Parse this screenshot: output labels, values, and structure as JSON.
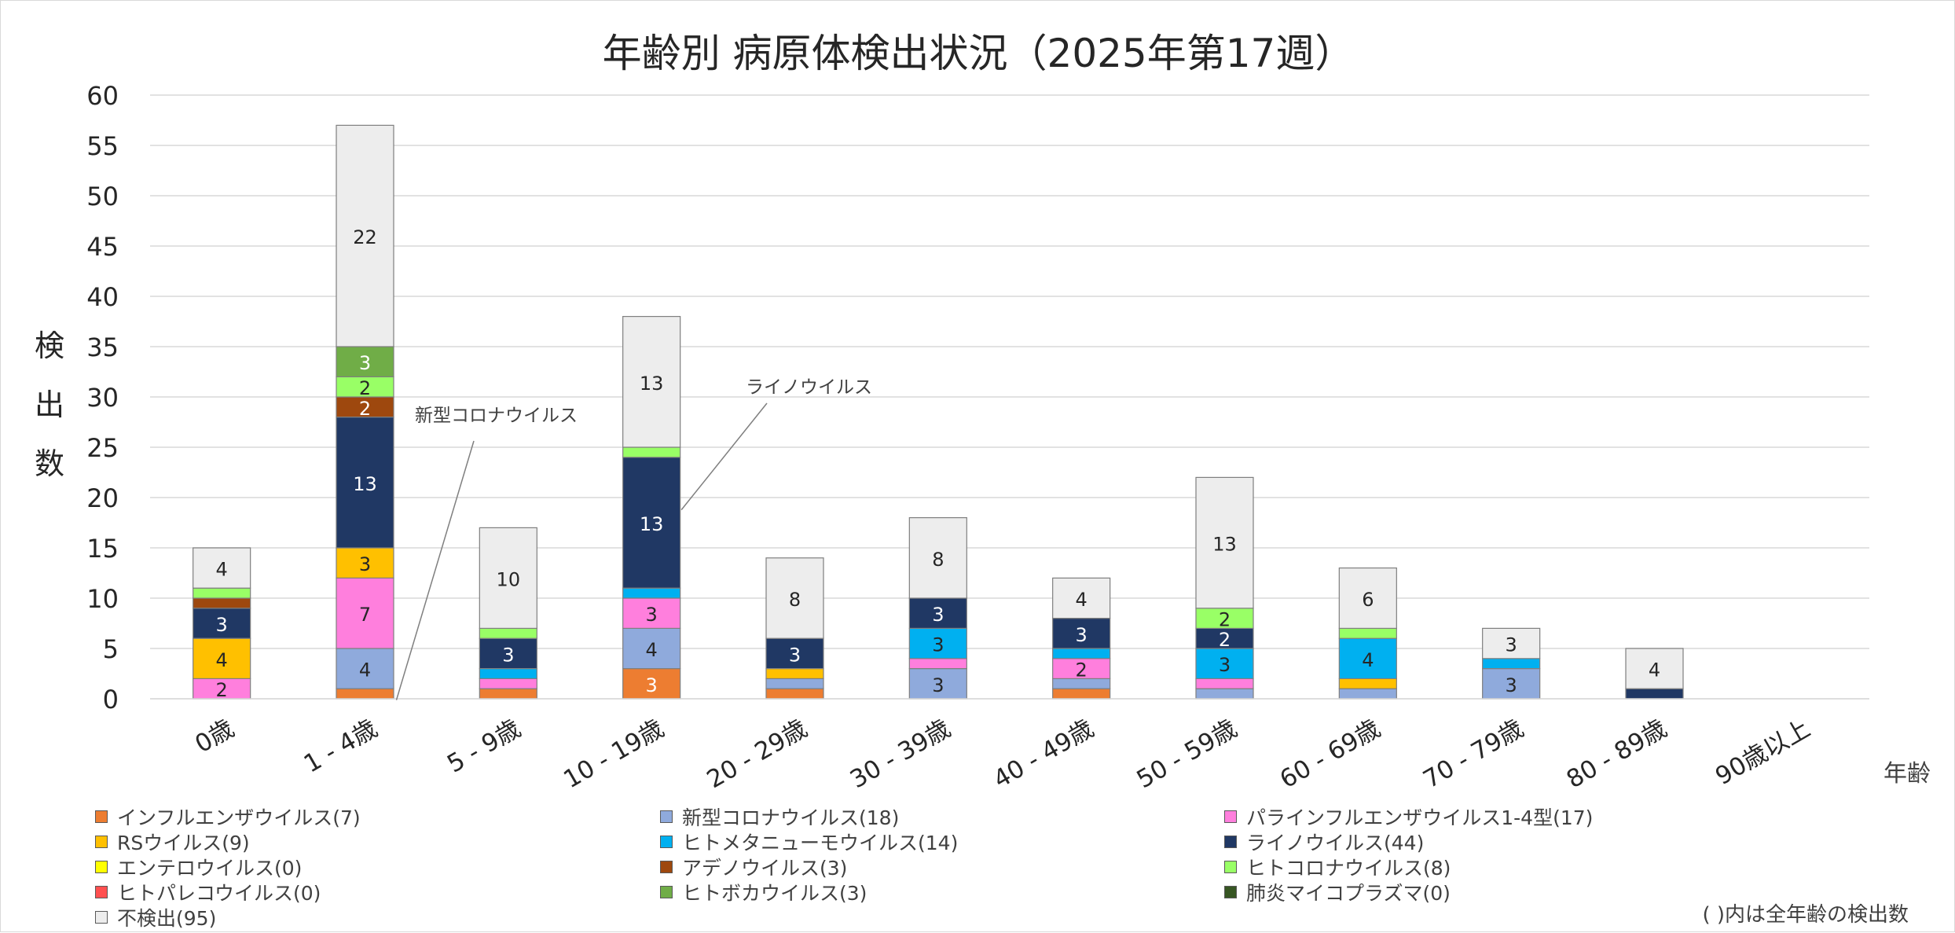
{
  "chart_data": {
    "type": "bar",
    "stacked": true,
    "title": "年齢別 病原体検出状況（2025年第17週）",
    "ylabel": "検出数",
    "xlabel": "年齢",
    "ylim": [
      0,
      60
    ],
    "yticks": [
      0,
      5,
      10,
      15,
      20,
      25,
      30,
      35,
      40,
      45,
      50,
      55,
      60
    ],
    "grid": true,
    "legend_position": "bottom",
    "categories": [
      "0歳",
      "1 - 4歳",
      "5 - 9歳",
      "10 - 19歳",
      "20 - 29歳",
      "30 - 39歳",
      "40 - 49歳",
      "50 - 59歳",
      "60 - 69歳",
      "70 - 79歳",
      "80 - 89歳",
      "90歳以上"
    ],
    "series": [
      {
        "name": "インフルエンザウイルス(7)",
        "color": "#ED7D31",
        "values": [
          0,
          1,
          1,
          3,
          1,
          0,
          1,
          0,
          0,
          0,
          0,
          0
        ]
      },
      {
        "name": "新型コロナウイルス(18)",
        "color": "#8FAADC",
        "values": [
          0,
          4,
          0,
          4,
          1,
          3,
          1,
          1,
          1,
          3,
          0,
          0
        ]
      },
      {
        "name": "パラインフルエンザウイルス1-4型(17)",
        "color": "#FF7FDD",
        "values": [
          2,
          7,
          1,
          3,
          0,
          1,
          2,
          1,
          0,
          0,
          0,
          0
        ]
      },
      {
        "name": "RSウイルス(9)",
        "color": "#FFC000",
        "values": [
          4,
          3,
          0,
          0,
          1,
          0,
          0,
          0,
          1,
          0,
          0,
          0
        ]
      },
      {
        "name": "ヒトメタニューモウイルス(14)",
        "color": "#00B0F0",
        "values": [
          0,
          0,
          1,
          1,
          0,
          3,
          1,
          3,
          4,
          1,
          0,
          0
        ]
      },
      {
        "name": "ライノウイルス(44)",
        "color": "#203864",
        "values": [
          3,
          13,
          3,
          13,
          3,
          3,
          3,
          2,
          0,
          0,
          1,
          0
        ]
      },
      {
        "name": "エンテロウイルス(0)",
        "color": "#FFFF00",
        "values": [
          0,
          0,
          0,
          0,
          0,
          0,
          0,
          0,
          0,
          0,
          0,
          0
        ]
      },
      {
        "name": "アデノウイルス(3)",
        "color": "#9E480E",
        "values": [
          1,
          2,
          0,
          0,
          0,
          0,
          0,
          0,
          0,
          0,
          0,
          0
        ]
      },
      {
        "name": "ヒトコロナウイルス(8)",
        "color": "#99FF66",
        "values": [
          1,
          2,
          1,
          1,
          0,
          0,
          0,
          2,
          1,
          0,
          0,
          0
        ]
      },
      {
        "name": "ヒトパレコウイルス(0)",
        "color": "#FF5050",
        "values": [
          0,
          0,
          0,
          0,
          0,
          0,
          0,
          0,
          0,
          0,
          0,
          0
        ]
      },
      {
        "name": "ヒトボカウイルス(3)",
        "color": "#70AD47",
        "values": [
          0,
          3,
          0,
          0,
          0,
          0,
          0,
          0,
          0,
          0,
          0,
          0
        ]
      },
      {
        "name": "肺炎マイコプラズマ(0)",
        "color": "#375623",
        "values": [
          0,
          0,
          0,
          0,
          0,
          0,
          0,
          0,
          0,
          0,
          0,
          0
        ]
      },
      {
        "name": "不検出(95)",
        "color": "#EDEDED",
        "values": [
          4,
          22,
          10,
          13,
          8,
          8,
          4,
          13,
          6,
          3,
          4,
          0
        ]
      }
    ],
    "annotations": [
      {
        "text": "新型コロナウイルス",
        "category": "1 - 4歳"
      },
      {
        "text": "ライノウイルス",
        "category": "10 - 19歳"
      }
    ],
    "note": "( )内は全年齢の検出数"
  }
}
